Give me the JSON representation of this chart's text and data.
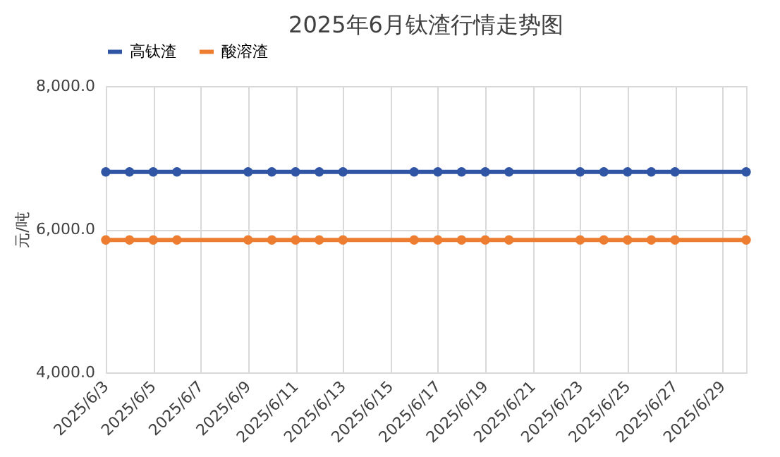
{
  "chart_data": {
    "type": "line",
    "title": "2025年6月钛渣行情走势图",
    "ylabel": "元/吨",
    "x": [
      "2025-06-03",
      "2025-06-04",
      "2025-06-05",
      "2025-06-06",
      "2025-06-09",
      "2025-06-10",
      "2025-06-11",
      "2025-06-12",
      "2025-06-13",
      "2025-06-16",
      "2025-06-17",
      "2025-06-18",
      "2025-06-19",
      "2025-06-20",
      "2025-06-23",
      "2025-06-24",
      "2025-06-25",
      "2025-06-26",
      "2025-06-27",
      "2025-06-30"
    ],
    "series": [
      {
        "name": "高钛渣",
        "color": "#2f55a4",
        "values": [
          6800,
          6800,
          6800,
          6800,
          6800,
          6800,
          6800,
          6800,
          6800,
          6800,
          6800,
          6800,
          6800,
          6800,
          6800,
          6800,
          6800,
          6800,
          6800,
          6800
        ]
      },
      {
        "name": "酸溶渣",
        "color": "#ed7d31",
        "values": [
          5850,
          5850,
          5850,
          5850,
          5850,
          5850,
          5850,
          5850,
          5850,
          5850,
          5850,
          5850,
          5850,
          5850,
          5850,
          5850,
          5850,
          5850,
          5850,
          5850
        ]
      }
    ],
    "xlim": [
      "2025-06-03",
      "2025-06-30"
    ],
    "xticks": [
      {
        "value": "2025-06-03",
        "label": "2025/6/3"
      },
      {
        "value": "2025-06-05",
        "label": "2025/6/5"
      },
      {
        "value": "2025-06-07",
        "label": "2025/6/7"
      },
      {
        "value": "2025-06-09",
        "label": "2025/6/9"
      },
      {
        "value": "2025-06-11",
        "label": "2025/6/11"
      },
      {
        "value": "2025-06-13",
        "label": "2025/6/13"
      },
      {
        "value": "2025-06-15",
        "label": "2025/6/15"
      },
      {
        "value": "2025-06-17",
        "label": "2025/6/17"
      },
      {
        "value": "2025-06-19",
        "label": "2025/6/19"
      },
      {
        "value": "2025-06-21",
        "label": "2025/6/21"
      },
      {
        "value": "2025-06-23",
        "label": "2025/6/23"
      },
      {
        "value": "2025-06-25",
        "label": "2025/6/25"
      },
      {
        "value": "2025-06-27",
        "label": "2025/6/27"
      },
      {
        "value": "2025-06-29",
        "label": "2025/6/29"
      }
    ],
    "ylim": [
      4000,
      8000
    ],
    "yticks": [
      {
        "value": 4000,
        "label": "4,000.0"
      },
      {
        "value": 6000,
        "label": "6,000.0"
      },
      {
        "value": 8000,
        "label": "8,000.0"
      }
    ],
    "grid": true,
    "legend": "top",
    "marker": "circle",
    "line_style": "solid"
  }
}
